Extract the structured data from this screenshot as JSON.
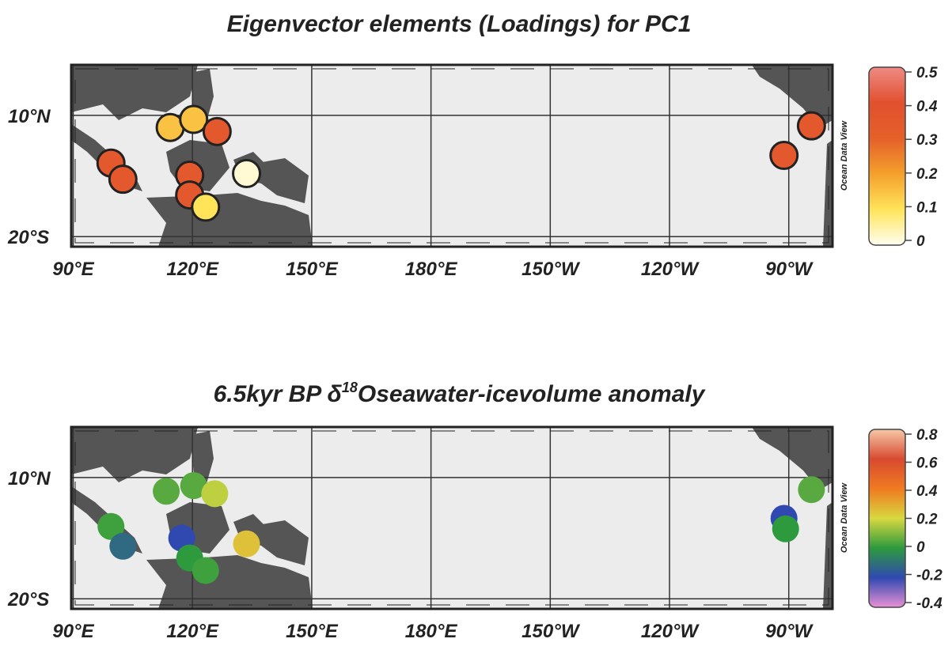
{
  "maps": [
    {
      "title": [
        "Eigenvector elements (Loadings) for PC1"
      ],
      "lonlim": [
        89.5,
        281
      ],
      "latlim": [
        -22.5,
        22.5
      ],
      "lonticks": [
        {
          "value": 90,
          "label": "90°E"
        },
        {
          "value": 120,
          "label": "120°E"
        },
        {
          "value": 150,
          "label": "150°E"
        },
        {
          "value": 180,
          "label": "180°E"
        },
        {
          "value": 210,
          "label": "150°W"
        },
        {
          "value": 240,
          "label": "120°W"
        },
        {
          "value": 270,
          "label": "90°W"
        }
      ],
      "latticks": [
        {
          "value": 10,
          "label": "10°N"
        },
        {
          "value": -20,
          "label": "20°S"
        }
      ],
      "credit": "Ocean Data View",
      "clim": [
        0,
        0.5
      ],
      "cticks": [
        0.5,
        0.4,
        0.3,
        0.2,
        0.1,
        0
      ],
      "colormap": [
        "#fffef2",
        "#ffe45a",
        "#f5a02c",
        "#e4602a",
        "#e2502e",
        "#ee8a84"
      ],
      "points": [
        {
          "lon": 99.5,
          "lat": -1.8,
          "value": 0.35
        },
        {
          "lon": 102.5,
          "lat": -5.8,
          "value": 0.35
        },
        {
          "lon": 114.4,
          "lat": 7,
          "value": 0.15
        },
        {
          "lon": 120.3,
          "lat": 9,
          "value": 0.15
        },
        {
          "lon": 126.2,
          "lat": 6,
          "value": 0.35
        },
        {
          "lon": 119.3,
          "lat": -4.8,
          "value": 0.35
        },
        {
          "lon": 119.3,
          "lat": -9.7,
          "value": 0.35
        },
        {
          "lon": 123.3,
          "lat": -12.7,
          "value": 0.1
        },
        {
          "lon": 133.6,
          "lat": -4.4,
          "value": 0.02
        },
        {
          "lon": 268.8,
          "lat": 0.1,
          "value": 0.35
        },
        {
          "lon": 275.7,
          "lat": 7.4,
          "value": 0.35
        }
      ]
    },
    {
      "title": [
        "6.5kyr BP ",
        "δ",
        "18",
        "Oseawater-icevolume anomaly"
      ],
      "lonlim": [
        89.5,
        281
      ],
      "latlim": [
        -22.5,
        22.5
      ],
      "lonticks": [
        {
          "value": 90,
          "label": "90°E"
        },
        {
          "value": 120,
          "label": "120°E"
        },
        {
          "value": 150,
          "label": "150°E"
        },
        {
          "value": 180,
          "label": "180°E"
        },
        {
          "value": 210,
          "label": "150°W"
        },
        {
          "value": 240,
          "label": "120°W"
        },
        {
          "value": 270,
          "label": "90°W"
        }
      ],
      "latticks": [
        {
          "value": 10,
          "label": "10°N"
        },
        {
          "value": -20,
          "label": "20°S"
        }
      ],
      "credit": "Ocean Data View",
      "clim": [
        -0.4,
        0.8
      ],
      "cticks": [
        0.8,
        0.6,
        0.4,
        0.2,
        0,
        -0.2,
        -0.4
      ],
      "colormap": [
        "#e890d4",
        "#2f49b0",
        "#2e9a3e",
        "#d8d840",
        "#f07a20",
        "#d84a30",
        "#f6c8a8"
      ],
      "points": [
        {
          "lon": 113.4,
          "lat": 6.6,
          "value": 0.05
        },
        {
          "lon": 120.3,
          "lat": 8,
          "value": 0.05
        },
        {
          "lon": 125.6,
          "lat": 6,
          "value": 0.17
        },
        {
          "lon": 99.5,
          "lat": -2.1,
          "value": 0.02
        },
        {
          "lon": 102.5,
          "lat": -7,
          "value": -0.12
        },
        {
          "lon": 117.3,
          "lat": -5,
          "value": -0.2
        },
        {
          "lon": 119.3,
          "lat": -9.9,
          "value": 0
        },
        {
          "lon": 123.3,
          "lat": -13,
          "value": 0.02
        },
        {
          "lon": 133.6,
          "lat": -6.4,
          "value": 0.25
        },
        {
          "lon": 268.8,
          "lat": -0.1,
          "value": -0.2
        },
        {
          "lon": 269.2,
          "lat": -2.7,
          "value": 0
        },
        {
          "lon": 275.7,
          "lat": 7,
          "value": 0.05
        }
      ]
    }
  ]
}
